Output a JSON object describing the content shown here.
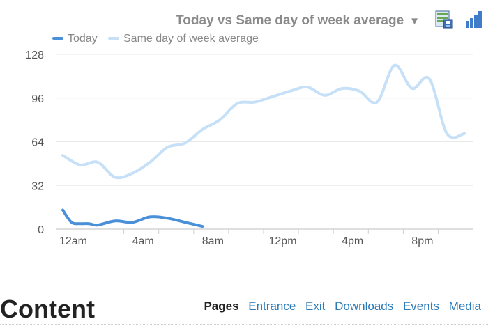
{
  "header": {
    "dropdown_label": "Today vs Same day of week average",
    "dropdown_arrow": "▼",
    "export_icon": "export-data-icon",
    "chart_icon": "bar-chart-icon"
  },
  "legend": {
    "items": [
      {
        "label": "Today",
        "color": "#4a90d9"
      },
      {
        "label": "Same day of week average",
        "color": "#c6e0f7"
      }
    ]
  },
  "chart_data": {
    "type": "line",
    "x_tick_labels": [
      "12am",
      "4am",
      "8am",
      "12pm",
      "4pm",
      "8pm"
    ],
    "ylim": [
      0,
      128
    ],
    "yticks": [
      0,
      32,
      64,
      96,
      128
    ],
    "grid": "horizontal",
    "legend_position": "top-left",
    "series": [
      {
        "name": "Today",
        "color": "#4a90d9",
        "points": [
          [
            0,
            14
          ],
          [
            0.5,
            5
          ],
          [
            1,
            4
          ],
          [
            1.5,
            4
          ],
          [
            2,
            3
          ],
          [
            3,
            6
          ],
          [
            4,
            5
          ],
          [
            5,
            9
          ],
          [
            6,
            8
          ],
          [
            7,
            5
          ],
          [
            8,
            2
          ]
        ]
      },
      {
        "name": "Same day of week average",
        "color": "#c6e0f7",
        "points": [
          [
            0,
            54
          ],
          [
            1,
            47
          ],
          [
            2,
            49
          ],
          [
            3,
            38
          ],
          [
            4,
            41
          ],
          [
            5,
            49
          ],
          [
            6,
            60
          ],
          [
            7,
            63
          ],
          [
            8,
            73
          ],
          [
            9,
            80
          ],
          [
            10,
            92
          ],
          [
            11,
            93
          ],
          [
            12,
            97
          ],
          [
            13,
            101
          ],
          [
            14,
            104
          ],
          [
            15,
            98
          ],
          [
            16,
            103
          ],
          [
            17,
            101
          ],
          [
            18,
            93
          ],
          [
            19,
            120
          ],
          [
            20,
            103
          ],
          [
            21,
            110
          ],
          [
            22,
            70
          ],
          [
            23,
            70
          ]
        ]
      }
    ]
  },
  "content": {
    "title": "Content",
    "tabs": [
      {
        "label": "Pages",
        "active": true
      },
      {
        "label": "Entrance",
        "active": false
      },
      {
        "label": "Exit",
        "active": false
      },
      {
        "label": "Downloads",
        "active": false
      },
      {
        "label": "Events",
        "active": false
      },
      {
        "label": "Media",
        "active": false
      }
    ]
  }
}
